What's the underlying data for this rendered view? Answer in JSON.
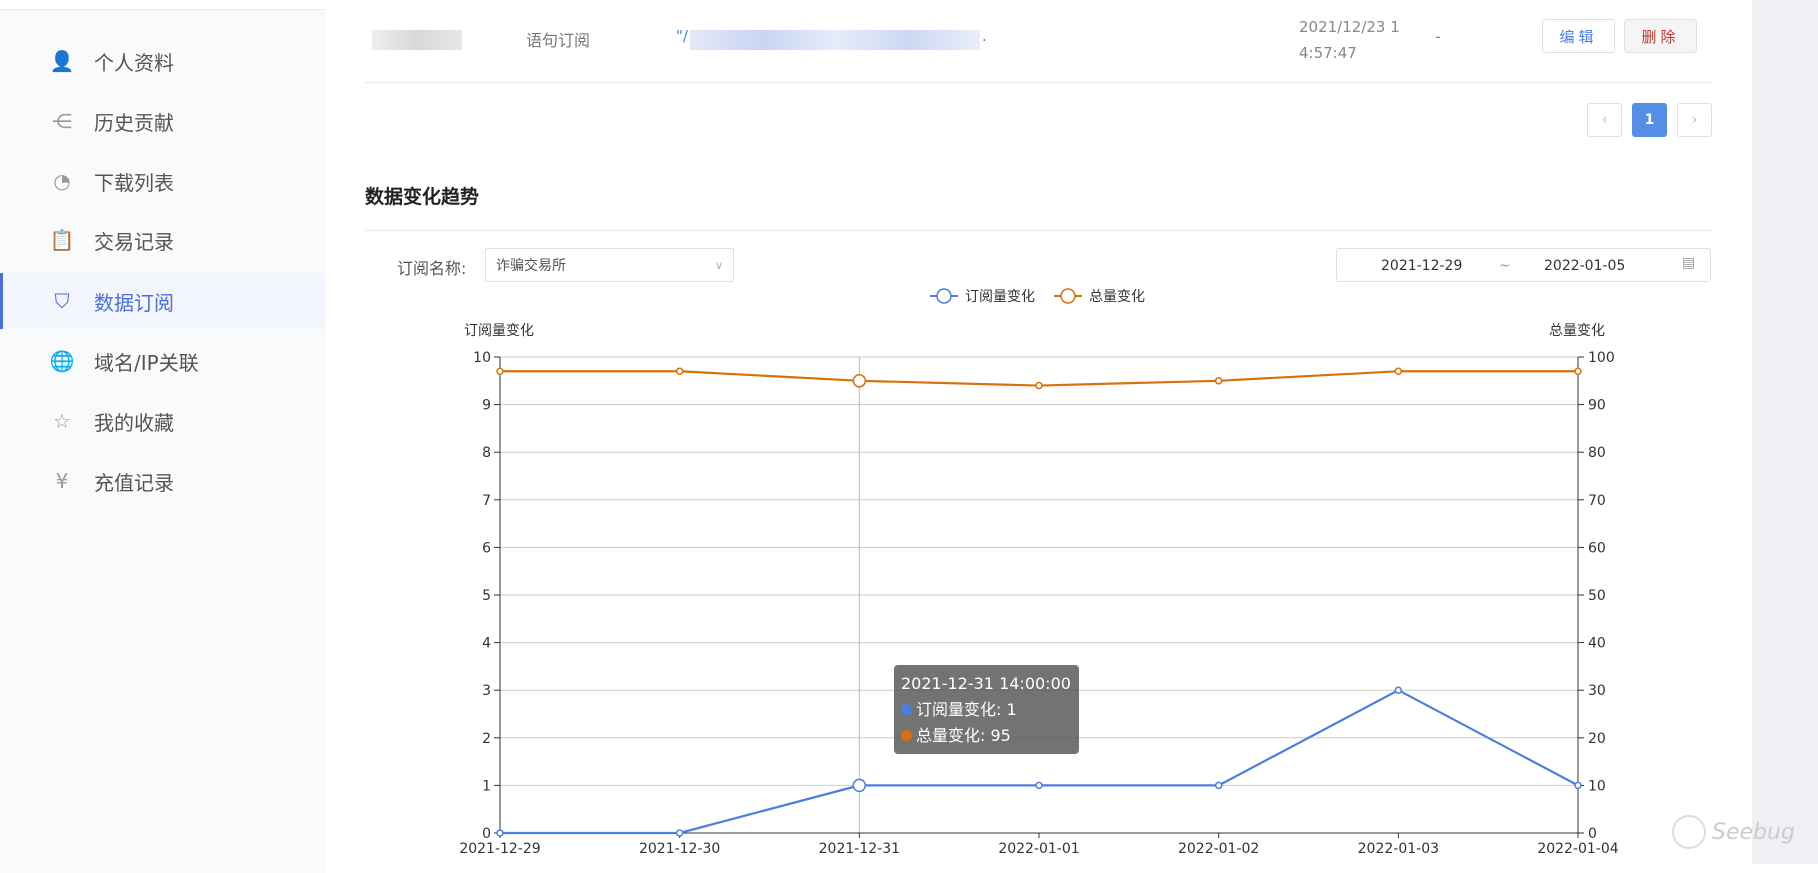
{
  "sidebar": {
    "items": [
      {
        "label": "个人资料",
        "icon": "user-icon"
      },
      {
        "label": "历史贡献",
        "icon": "share-icon"
      },
      {
        "label": "下载列表",
        "icon": "pie-chart-icon"
      },
      {
        "label": "交易记录",
        "icon": "clipboard-icon"
      },
      {
        "label": "数据订阅",
        "icon": "bookmark-star-icon",
        "active": true
      },
      {
        "label": "域名/IP关联",
        "icon": "globe-icon"
      },
      {
        "label": "我的收藏",
        "icon": "star-icon"
      },
      {
        "label": "充值记录",
        "icon": "yen-icon"
      }
    ]
  },
  "row": {
    "type": "语句订阅",
    "url_prefix": "\"/",
    "url_suffix": ".",
    "date": "2021/12/23 1",
    "time": "4:57:47",
    "extra": "-",
    "edit": "编辑",
    "delete": "删除"
  },
  "pagination": {
    "prev": "‹",
    "page": "1",
    "next": "›"
  },
  "section": {
    "title": "数据变化趋势"
  },
  "filter": {
    "label": "订阅名称:",
    "value": "诈骗交易所",
    "date_start": "2021-12-29",
    "date_sep": "~",
    "date_end": "2022-01-05"
  },
  "colors": {
    "accent": "#4a7ee0",
    "orange": "#d9700a"
  },
  "chart_data": {
    "type": "line",
    "categories": [
      "2021-12-29",
      "2021-12-30",
      "2021-12-31",
      "2022-01-01",
      "2022-01-02",
      "2022-01-03",
      "2022-01-04"
    ],
    "series": [
      {
        "name": "订阅量变化",
        "axis": "left",
        "color": "#4a7ee0",
        "values": [
          0,
          0,
          1,
          1,
          1,
          3,
          1
        ]
      },
      {
        "name": "总量变化",
        "axis": "right",
        "color": "#d9700a",
        "values": [
          97,
          97,
          95,
          94,
          95,
          97,
          97
        ]
      }
    ],
    "ylabel_left": "订阅量变化",
    "ylabel_right": "总量变化",
    "ylim_left": [
      0,
      10
    ],
    "ylim_right": [
      0,
      100
    ],
    "yticks_left": [
      "0",
      "1",
      "2",
      "3",
      "4",
      "5",
      "6",
      "7",
      "8",
      "9",
      "10"
    ],
    "yticks_right": [
      "0",
      "10",
      "20",
      "30",
      "40",
      "50",
      "60",
      "70",
      "80",
      "90",
      "100"
    ],
    "grid": true,
    "legend": "top",
    "tooltip": {
      "title": "2021-12-31 14:00:00",
      "lines": [
        "订阅量变化: 1",
        "总量变化: 95"
      ]
    }
  },
  "watermark": "Seebug"
}
